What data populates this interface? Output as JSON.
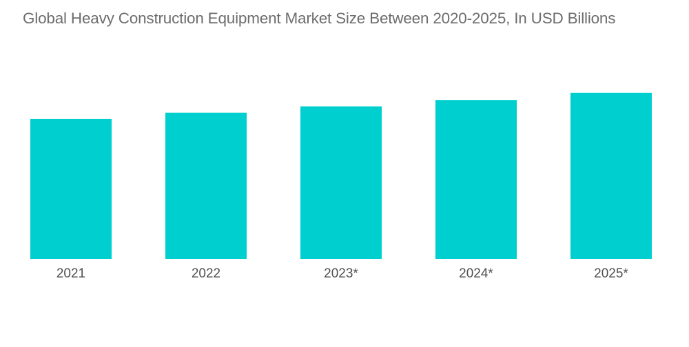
{
  "chart_data": {
    "type": "bar",
    "title": "Global Heavy Construction Equipment Market Size Between 2020-2025, In USD Billions",
    "categories": [
      "2021",
      "2022",
      "2023*",
      "2024*",
      "2025*"
    ],
    "values": [
      176,
      184,
      192,
      200,
      209
    ],
    "xlabel": "",
    "ylabel": "",
    "ylim": [
      0,
      260
    ],
    "grid": false,
    "legend": "none",
    "bar_color": "#00cfd0"
  }
}
